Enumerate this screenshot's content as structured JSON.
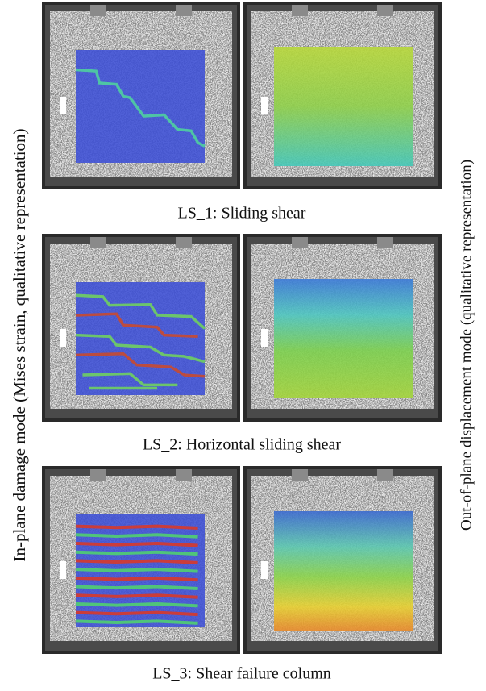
{
  "figure": {
    "left_label": "In-plane damage mode (Mises strain, qualitative representation)",
    "right_label": "Out-of-plane displacement mode (qualitative representation)",
    "panels": [
      {
        "caption": "LS_1: Sliding shear"
      },
      {
        "caption": "LS_2: Horizontal sliding shear"
      },
      {
        "caption": "LS_3: Shear failure column"
      }
    ]
  }
}
